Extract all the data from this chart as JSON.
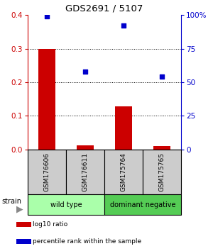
{
  "title": "GDS2691 / 5107",
  "samples": [
    "GSM176606",
    "GSM176611",
    "GSM175764",
    "GSM175765"
  ],
  "log10_ratio": [
    0.3,
    0.012,
    0.128,
    0.01
  ],
  "percentile_rank": [
    99.0,
    58.0,
    92.0,
    54.0
  ],
  "bar_color": "#cc0000",
  "point_color": "#0000cc",
  "ylim_left": [
    0,
    0.4
  ],
  "ylim_right": [
    0,
    100
  ],
  "yticks_left": [
    0.0,
    0.1,
    0.2,
    0.3,
    0.4
  ],
  "yticks_right": [
    0,
    25,
    50,
    75,
    100
  ],
  "yticklabels_right": [
    "0",
    "25",
    "50",
    "75",
    "100%"
  ],
  "groups": [
    {
      "label": "wild type",
      "samples": [
        0,
        1
      ],
      "color": "#aaffaa"
    },
    {
      "label": "dominant negative",
      "samples": [
        2,
        3
      ],
      "color": "#55cc55"
    }
  ],
  "strain_label": "strain",
  "legend_items": [
    {
      "color": "#cc0000",
      "label": "log10 ratio"
    },
    {
      "color": "#0000cc",
      "label": "percentile rank within the sample"
    }
  ],
  "background_color": "#ffffff",
  "sample_box_color": "#cccccc",
  "sample_box_edge_color": "#000000",
  "bar_width": 0.45
}
